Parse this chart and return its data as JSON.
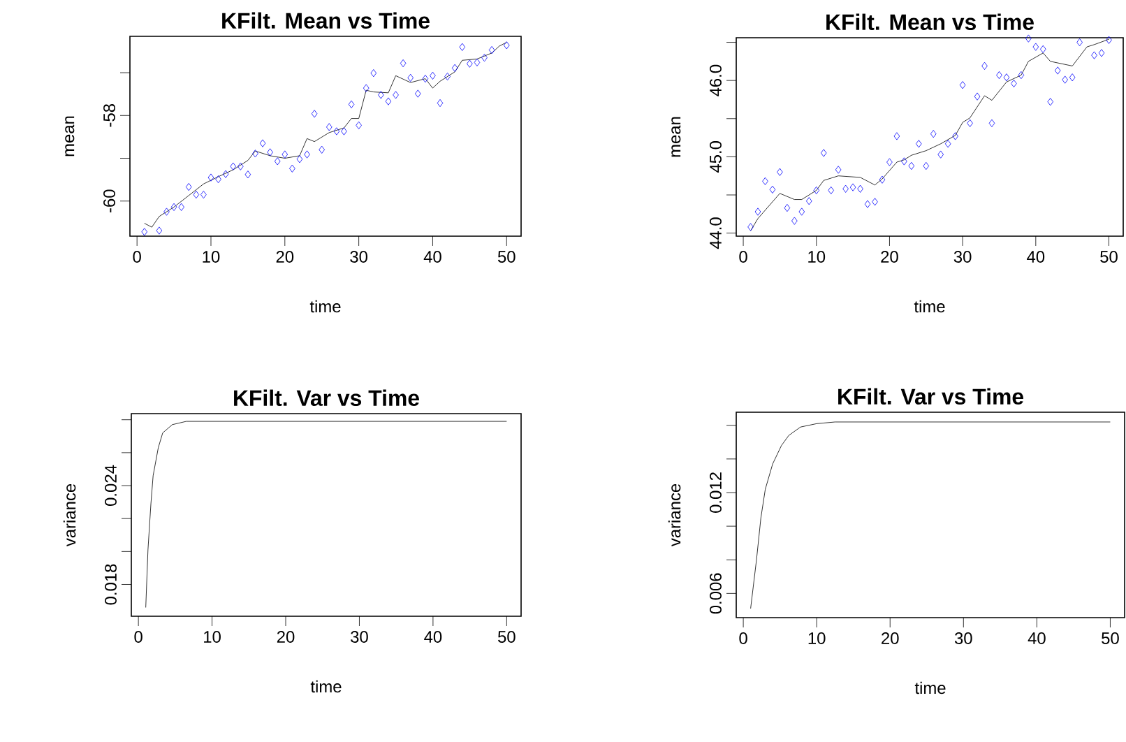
{
  "chart_data": [
    {
      "type": "scatter",
      "title": "KFilt. Mean vs Time",
      "xlabel": "time",
      "ylabel": "mean",
      "xlim": [
        -0.96,
        51.96
      ],
      "ylim": [
        -60.82,
        -56.15
      ],
      "xticks": [
        0,
        10,
        20,
        30,
        40,
        50
      ],
      "yticks": [
        -60,
        {
          "value": -59,
          "label": null
        },
        -58,
        {
          "value": -57,
          "label": null
        }
      ],
      "series": [
        {
          "type": "scatter",
          "marker": "diamond",
          "color": "#0000ff",
          "x": [
            1,
            3,
            4,
            5,
            6,
            7,
            8,
            9,
            10,
            11,
            12,
            13,
            14,
            15,
            16,
            17,
            18,
            19,
            20,
            21,
            22,
            23,
            24,
            25,
            26,
            27,
            28,
            29,
            30,
            31,
            32,
            33,
            34,
            35,
            36,
            37,
            38,
            39,
            40,
            41,
            42,
            43,
            44,
            45,
            46,
            47,
            48,
            50
          ],
          "values": [
            -60.72,
            -60.69,
            -60.25,
            -60.14,
            -60.14,
            -59.67,
            -59.85,
            -59.85,
            -59.45,
            -59.49,
            -59.37,
            -59.19,
            -59.19,
            -59.38,
            -58.89,
            -58.65,
            -58.86,
            -59.07,
            -58.91,
            -59.24,
            -59.02,
            -58.91,
            -57.96,
            -58.8,
            -58.27,
            -58.37,
            -58.37,
            -57.74,
            -58.23,
            -57.36,
            -57.01,
            -57.52,
            -57.67,
            -57.52,
            -56.78,
            -57.12,
            -57.49,
            -57.14,
            -57.07,
            -57.71,
            -57.09,
            -56.89,
            -56.4,
            -56.79,
            -56.76,
            -56.65,
            -56.47,
            -56.36
          ]
        },
        {
          "type": "line",
          "color": "#000000",
          "x": [
            1,
            2,
            3,
            5,
            7,
            9,
            11,
            13,
            15,
            16,
            18,
            20,
            22,
            23,
            24,
            26,
            28,
            29,
            30,
            31,
            32,
            34,
            35,
            37,
            39,
            40,
            41,
            43,
            44,
            46,
            48,
            49,
            50
          ],
          "values": [
            -60.52,
            -60.61,
            -60.36,
            -60.14,
            -59.87,
            -59.6,
            -59.43,
            -59.27,
            -59.05,
            -58.83,
            -58.94,
            -59.0,
            -58.94,
            -58.54,
            -58.61,
            -58.4,
            -58.29,
            -58.07,
            -58.07,
            -57.41,
            -57.45,
            -57.47,
            -57.07,
            -57.23,
            -57.14,
            -57.36,
            -57.2,
            -56.98,
            -56.71,
            -56.68,
            -56.54,
            -56.38,
            -56.29
          ]
        }
      ]
    },
    {
      "type": "scatter",
      "title": "KFilt. Mean vs Time",
      "xlabel": "time",
      "ylabel": "mean",
      "xlim": [
        -0.96,
        51.96
      ],
      "ylim": [
        43.96,
        46.56
      ],
      "xticks": [
        0,
        10,
        20,
        30,
        40,
        50
      ],
      "yticks": [
        {
          "value": 44,
          "label": "44.0"
        },
        {
          "value": 44.5,
          "label": null
        },
        {
          "value": 45,
          "label": "45.0"
        },
        {
          "value": 45.5,
          "label": null
        },
        {
          "value": 46,
          "label": "46.0"
        },
        {
          "value": 46.5,
          "label": null
        }
      ],
      "series": [
        {
          "type": "scatter",
          "marker": "diamond",
          "color": "#0000ff",
          "x": [
            1,
            2,
            3,
            4,
            5,
            6,
            7,
            8,
            9,
            10,
            11,
            12,
            13,
            14,
            15,
            16,
            17,
            18,
            19,
            20,
            21,
            22,
            23,
            24,
            25,
            26,
            27,
            28,
            29,
            30,
            31,
            32,
            33,
            34,
            35,
            36,
            37,
            38,
            39,
            40,
            41,
            42,
            43,
            44,
            45,
            46,
            48,
            49,
            50
          ],
          "values": [
            44.08,
            44.28,
            44.68,
            44.57,
            44.8,
            44.33,
            44.16,
            44.28,
            44.42,
            44.56,
            45.05,
            44.56,
            44.83,
            44.58,
            44.6,
            44.58,
            44.38,
            44.41,
            44.7,
            44.93,
            45.27,
            44.94,
            44.88,
            45.17,
            44.88,
            45.3,
            45.03,
            45.17,
            45.27,
            45.94,
            45.44,
            45.79,
            46.19,
            45.44,
            46.07,
            46.04,
            45.96,
            46.07,
            46.55,
            46.44,
            46.41,
            45.72,
            46.13,
            46.01,
            46.04,
            46.5,
            46.33,
            46.36,
            46.53
          ]
        },
        {
          "type": "line",
          "color": "#000000",
          "x": [
            1,
            2,
            5,
            7,
            8,
            10,
            11,
            13,
            16,
            18,
            19,
            21,
            22,
            23,
            25,
            27,
            29,
            30,
            31,
            33,
            34,
            36,
            38,
            39,
            41,
            42,
            45,
            47,
            48,
            50
          ],
          "values": [
            44.03,
            44.19,
            44.52,
            44.44,
            44.44,
            44.56,
            44.69,
            44.75,
            44.73,
            44.63,
            44.71,
            44.93,
            44.96,
            45.02,
            45.08,
            45.17,
            45.28,
            45.45,
            45.51,
            45.8,
            45.74,
            45.98,
            46.07,
            46.25,
            46.36,
            46.25,
            46.19,
            46.44,
            46.47,
            46.54
          ]
        }
      ]
    },
    {
      "type": "line",
      "title": "KFilt. Var vs Time",
      "xlabel": "time",
      "ylabel": "variance",
      "xlim": [
        -0.96,
        51.96
      ],
      "ylim": [
        0.01607,
        0.02837
      ],
      "xticks": [
        0,
        10,
        20,
        30,
        40,
        50
      ],
      "yticks": [
        0.018,
        {
          "value": 0.02,
          "label": null
        },
        {
          "value": 0.022,
          "label": null
        },
        0.024,
        {
          "value": 0.026,
          "label": null
        },
        {
          "value": 0.028,
          "label": null
        }
      ],
      "series": [
        {
          "color": "#000000",
          "x": [
            1,
            1.3,
            1.7,
            2,
            2.7,
            3.3,
            4.6,
            6.5,
            50
          ],
          "values": [
            0.0166,
            0.0201,
            0.0229,
            0.0246,
            0.0263,
            0.0272,
            0.0277,
            0.0279,
            0.0279
          ]
        }
      ]
    },
    {
      "type": "line",
      "title": "KFilt. Var vs Time",
      "xlabel": "time",
      "ylabel": "variance",
      "xlim": [
        -0.96,
        51.96
      ],
      "ylim": [
        0.00456,
        0.01678
      ],
      "xticks": [
        0,
        10,
        20,
        30,
        40,
        50
      ],
      "yticks": [
        0.006,
        {
          "value": 0.008,
          "label": null
        },
        {
          "value": 0.01,
          "label": null
        },
        0.012,
        {
          "value": 0.014,
          "label": null
        },
        {
          "value": 0.016,
          "label": null
        }
      ],
      "series": [
        {
          "color": "#000000",
          "x": [
            1,
            1.8,
            2.4,
            3,
            4,
            5.2,
            6.2,
            7.8,
            10,
            12.5,
            50
          ],
          "values": [
            0.0051,
            0.008,
            0.0105,
            0.0122,
            0.0137,
            0.0148,
            0.0154,
            0.0159,
            0.0161,
            0.0162,
            0.0162
          ]
        }
      ]
    }
  ]
}
